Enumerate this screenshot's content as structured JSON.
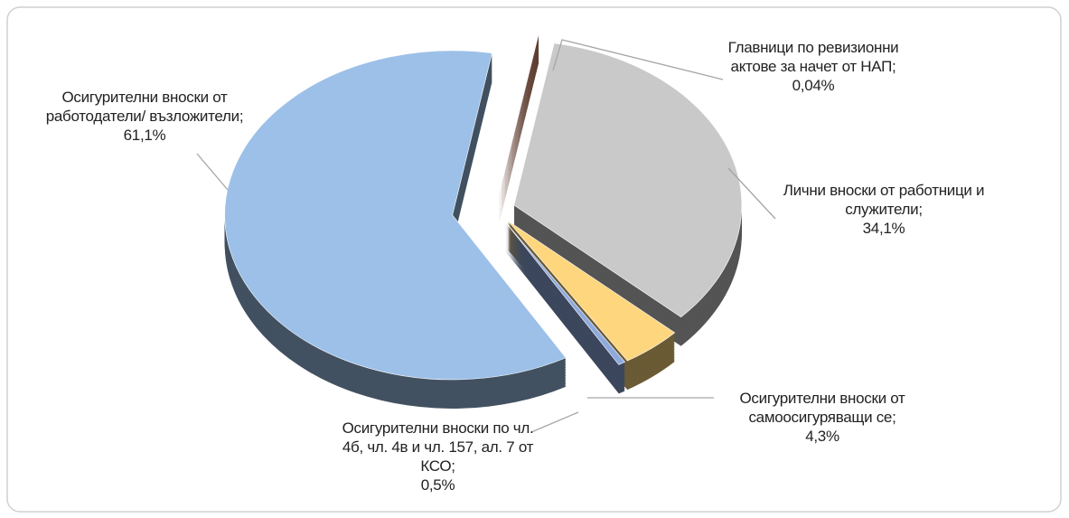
{
  "chart_data": {
    "type": "pie",
    "categories": [
      "Главници по ревизионни актове за начет от НАП;",
      "Лични вноски от работници и служители;",
      "Осигурителни вноски от самоосигуряващи се;",
      "Осигурителни вноски по чл. 4б, чл. 4в и чл. 157, ал. 7 от КСО;",
      "Осигурителни вноски от работодатели/ възложители;"
    ],
    "values": [
      0.04,
      34.1,
      4.3,
      0.5,
      61.1
    ],
    "value_labels": [
      "0,04%",
      "34,1%",
      "4,3%",
      "0,5%",
      "61,1%"
    ],
    "colors": [
      "#d9876c",
      "#c9c9c9",
      "#fdd67e",
      "#8eaade",
      "#9cc0e8"
    ]
  }
}
